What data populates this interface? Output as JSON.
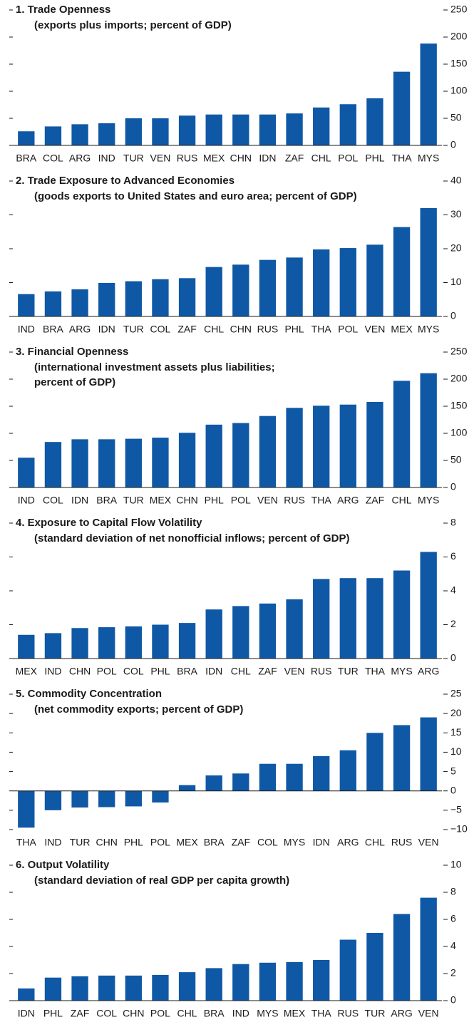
{
  "chart_data": [
    {
      "type": "bar",
      "title": "1. Trade Openness",
      "subtitle": [
        "(exports plus imports; percent of GDP)"
      ],
      "categories": [
        "BRA",
        "COL",
        "ARG",
        "IND",
        "TUR",
        "VEN",
        "RUS",
        "MEX",
        "CHN",
        "IDN",
        "ZAF",
        "CHL",
        "POL",
        "PHL",
        "THA",
        "MYS"
      ],
      "values": [
        26,
        35,
        39,
        41,
        50,
        50,
        55,
        57,
        57,
        57,
        59,
        70,
        76,
        87,
        136,
        188
      ],
      "color": "#0f58a6",
      "ylim": [
        0,
        250
      ],
      "yticks": [
        0,
        50,
        100,
        150,
        200,
        250
      ]
    },
    {
      "type": "bar",
      "title": "2. Trade Exposure to Advanced Economies",
      "subtitle": [
        "(goods exports to United States and euro area; percent of GDP)"
      ],
      "categories": [
        "IND",
        "BRA",
        "ARG",
        "IDN",
        "TUR",
        "COL",
        "ZAF",
        "CHL",
        "CHN",
        "RUS",
        "PHL",
        "THA",
        "POL",
        "VEN",
        "MEX",
        "MYS"
      ],
      "values": [
        6.6,
        7.4,
        8,
        9.9,
        10.4,
        11,
        11.3,
        14.6,
        15.3,
        16.7,
        17.4,
        19.8,
        20.2,
        21.2,
        26.4,
        32
      ],
      "color": "#0f58a6",
      "ylim": [
        0,
        40
      ],
      "yticks": [
        0,
        10,
        20,
        30,
        40
      ]
    },
    {
      "type": "bar",
      "title": "3. Financial Openness",
      "subtitle": [
        "(international investment assets plus liabilities;",
        "percent of GDP)"
      ],
      "categories": [
        "IND",
        "COL",
        "IDN",
        "BRA",
        "TUR",
        "MEX",
        "CHN",
        "PHL",
        "POL",
        "VEN",
        "RUS",
        "THA",
        "ARG",
        "ZAF",
        "CHL",
        "MYS"
      ],
      "values": [
        55,
        84,
        89,
        89,
        90,
        92,
        101,
        116,
        119,
        132,
        147,
        151,
        153,
        158,
        197,
        211
      ],
      "color": "#0f58a6",
      "ylim": [
        0,
        250
      ],
      "yticks": [
        0,
        50,
        100,
        150,
        200,
        250
      ]
    },
    {
      "type": "bar",
      "title": "4. Exposure to Capital Flow Volatility",
      "subtitle": [
        "(standard deviation of net nonofficial inflows; percent of GDP)"
      ],
      "categories": [
        "MEX",
        "IND",
        "CHN",
        "POL",
        "COL",
        "PHL",
        "BRA",
        "IDN",
        "CHL",
        "ZAF",
        "VEN",
        "RUS",
        "TUR",
        "THA",
        "MYS",
        "ARG"
      ],
      "values": [
        1.4,
        1.5,
        1.8,
        1.85,
        1.9,
        2,
        2.1,
        2.9,
        3.1,
        3.25,
        3.5,
        4.7,
        4.75,
        4.75,
        5.2,
        6.3
      ],
      "color": "#0f58a6",
      "ylim": [
        0,
        8
      ],
      "yticks": [
        0,
        2,
        4,
        6,
        8
      ]
    },
    {
      "type": "bar",
      "title": "5. Commodity Concentration",
      "subtitle": [
        "(net commodity exports; percent of GDP)"
      ],
      "categories": [
        "THA",
        "IND",
        "TUR",
        "CHN",
        "PHL",
        "POL",
        "MEX",
        "BRA",
        "ZAF",
        "COL",
        "MYS",
        "IDN",
        "ARG",
        "CHL",
        "RUS",
        "VEN"
      ],
      "values": [
        -9.5,
        -5,
        -4.3,
        -4.2,
        -4,
        -3,
        1.5,
        4,
        4.5,
        7,
        7,
        9,
        10.5,
        15,
        17,
        19
      ],
      "color": "#0f58a6",
      "ylim": [
        -10,
        25
      ],
      "yticks": [
        {
          "value": -10,
          "label": "−10"
        },
        {
          "value": -5,
          "label": "−5"
        },
        0,
        5,
        10,
        15,
        20,
        25
      ]
    },
    {
      "type": "bar",
      "title": "6. Output Volatility",
      "subtitle": [
        "(standard deviation of real GDP per capita growth)"
      ],
      "categories": [
        "IDN",
        "PHL",
        "ZAF",
        "COL",
        "CHN",
        "POL",
        "CHL",
        "BRA",
        "IND",
        "MYS",
        "MEX",
        "THA",
        "RUS",
        "TUR",
        "ARG",
        "VEN"
      ],
      "values": [
        0.9,
        1.7,
        1.8,
        1.85,
        1.85,
        1.9,
        2.1,
        2.4,
        2.7,
        2.8,
        2.85,
        3,
        4.5,
        5,
        6.4,
        7.6
      ],
      "color": "#0f58a6",
      "ylim": [
        0,
        10
      ],
      "yticks": [
        0,
        2,
        4,
        6,
        8,
        10
      ]
    }
  ]
}
